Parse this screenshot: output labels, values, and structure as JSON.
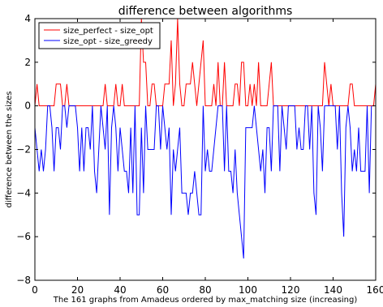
{
  "chart_data": {
    "type": "line",
    "title": "difference between algorithms",
    "xlabel": "The 161 graphs from Amadeus ordered by max_matching size (increasing)",
    "ylabel": "difference between the sizes",
    "xlim": [
      0,
      160
    ],
    "ylim": [
      -8,
      4
    ],
    "x_ticks": [
      0,
      20,
      40,
      60,
      80,
      100,
      120,
      140,
      160
    ],
    "y_ticks": [
      -8,
      -6,
      -4,
      -2,
      0,
      2,
      4
    ],
    "x_tick_labels": [
      "0",
      "20",
      "40",
      "60",
      "80",
      "100",
      "120",
      "140",
      "160"
    ],
    "y_tick_labels": [
      "−8",
      "−6",
      "−4",
      "−2",
      "0",
      "2",
      "4"
    ],
    "grid": false,
    "legend_position": "top-left",
    "series": [
      {
        "name": "size_perfect - size_opt",
        "color": "#ff0000",
        "values": [
          0,
          1,
          0,
          0,
          0,
          0,
          0,
          0,
          0,
          0,
          1,
          1,
          1,
          0,
          0,
          1,
          0,
          0,
          0,
          0,
          0,
          0,
          0,
          0,
          0,
          0,
          0,
          0,
          0,
          0,
          0,
          0,
          0,
          1,
          0,
          0,
          0,
          0,
          1,
          0,
          0,
          1,
          0,
          0,
          0,
          0,
          0,
          0,
          0,
          0,
          4,
          2,
          2,
          0,
          0,
          1,
          1,
          0,
          0,
          0,
          0,
          1,
          1,
          1,
          3,
          0,
          1,
          4,
          1,
          0,
          0,
          1,
          1,
          1,
          2,
          1,
          0,
          1,
          2,
          3,
          0,
          0,
          0,
          0,
          1,
          0,
          2,
          0,
          0,
          2,
          0,
          0,
          0,
          0,
          1,
          1,
          0,
          2,
          2,
          0,
          0,
          1,
          0,
          1,
          0,
          2,
          0,
          0,
          0,
          0,
          1,
          2,
          0,
          0,
          0,
          0,
          0,
          0,
          0,
          0,
          0,
          0,
          0,
          0,
          0,
          0,
          0,
          0,
          0,
          0,
          0,
          0,
          0,
          0,
          0,
          0,
          2,
          1,
          0,
          1,
          0,
          0,
          0,
          0,
          0,
          0,
          0,
          0,
          1,
          1,
          0,
          0,
          0,
          0,
          0,
          0,
          0,
          0,
          0,
          0,
          1
        ]
      },
      {
        "name": "size_opt - size_greedy",
        "color": "#0000ff",
        "values": [
          -1,
          -2,
          -3,
          -2,
          -3,
          -2,
          0,
          0,
          -1,
          -3,
          -1,
          -1,
          -2,
          0,
          0,
          -1,
          0,
          0,
          0,
          0,
          -1,
          -3,
          -1,
          -3,
          -1,
          -1,
          -2,
          0,
          -3,
          -4,
          -2,
          0,
          -1,
          -2,
          0,
          -5,
          -1,
          0,
          -1,
          -3,
          -1,
          -2,
          -3,
          -3,
          -4,
          -1,
          -4,
          0,
          -5,
          -5,
          -1,
          -4,
          0,
          -2,
          -2,
          -2,
          -2,
          0,
          0,
          -2,
          0,
          -1,
          -2,
          -1,
          -5,
          -2,
          -3,
          -2,
          -1,
          -4,
          -4,
          -4,
          -5,
          -4,
          -4,
          -3,
          -4,
          -5,
          -5,
          0,
          -3,
          -2,
          -3,
          -3,
          -2,
          -1,
          0,
          0,
          0,
          -3,
          0,
          -3,
          -3,
          -4,
          -2,
          -4,
          -5,
          -6,
          -7,
          -1,
          -1,
          -1,
          -1,
          0,
          -1,
          -2,
          -3,
          -2,
          -4,
          -1,
          -1,
          -3,
          0,
          0,
          0,
          -3,
          0,
          -1,
          -2,
          0,
          0,
          0,
          0,
          -2,
          -1,
          -2,
          -2,
          0,
          0,
          -2,
          0,
          -4,
          -5,
          0,
          -1,
          -3,
          0,
          0,
          0,
          0,
          0,
          0,
          -2,
          0,
          -4,
          -6,
          -1,
          0,
          -1,
          -3,
          -2,
          -3,
          -1,
          -3,
          -3,
          -3,
          0,
          -4,
          0
        ]
      }
    ]
  }
}
